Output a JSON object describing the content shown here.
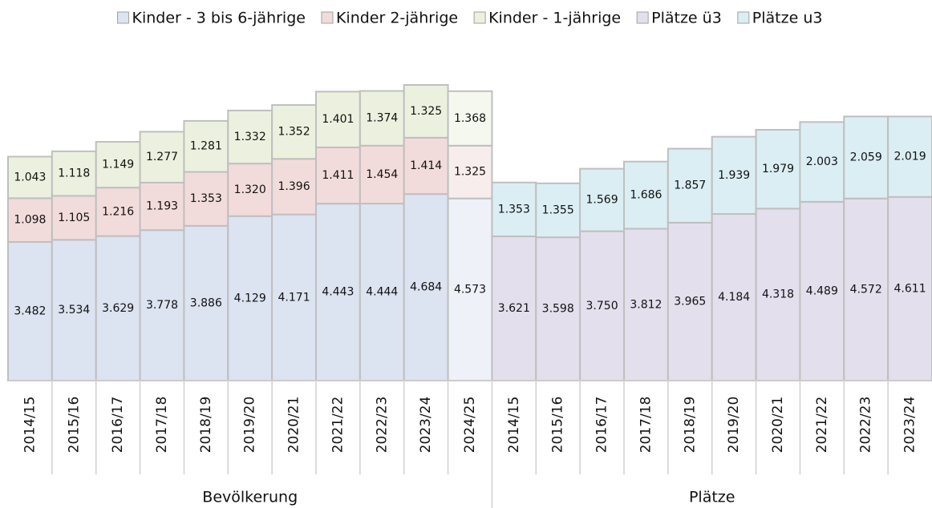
{
  "chart_data": {
    "type": "stacked_bar",
    "categories": [
      "2014/15",
      "2015/16",
      "2016/17",
      "2017/18",
      "2018/19",
      "2019/20",
      "2020/21",
      "2021/22",
      "2022/23",
      "2023/24",
      "2024/25",
      "2014/15",
      "2015/16",
      "2016/17",
      "2017/18",
      "2018/19",
      "2019/20",
      "2020/21",
      "2021/22",
      "2022/23",
      "2023/24"
    ],
    "groups": [
      "Bevölkerung",
      "Plätze"
    ],
    "series": [
      {
        "name": "Kinder - 3 bis 6-jährige",
        "color": "#dce3f1",
        "colors": [
          "#dce3f1",
          "#dce3f1",
          "#dce3f1",
          "#dce3f1",
          "#dce3f1",
          "#dce3f1",
          "#dce3f1",
          "#dce3f1",
          "#dce3f1",
          "#dce3f1",
          "#eef1f8",
          null,
          null,
          null,
          null,
          null,
          null,
          null,
          null,
          null,
          null
        ],
        "values": [
          3482,
          3534,
          3629,
          3778,
          3886,
          4129,
          4171,
          4443,
          4444,
          4684,
          4573,
          null,
          null,
          null,
          null,
          null,
          null,
          null,
          null,
          null,
          null
        ],
        "value_labels": [
          "3.482",
          "3.534",
          "3.629",
          "3.778",
          "3.886",
          "4.129",
          "4.171",
          "4.443",
          "4.444",
          "4.684",
          "4.573",
          null,
          null,
          null,
          null,
          null,
          null,
          null,
          null,
          null,
          null
        ]
      },
      {
        "name": "Kinder 2-jährige",
        "color": "#f2dcdb",
        "colors": [
          "#f2dcdb",
          "#f2dcdb",
          "#f2dcdb",
          "#f2dcdb",
          "#f2dcdb",
          "#f2dcdb",
          "#f2dcdb",
          "#f2dcdb",
          "#f2dcdb",
          "#f2dcdb",
          "#f8eded",
          null,
          null,
          null,
          null,
          null,
          null,
          null,
          null,
          null,
          null
        ],
        "values": [
          1098,
          1105,
          1216,
          1193,
          1353,
          1320,
          1396,
          1411,
          1454,
          1414,
          1325,
          null,
          null,
          null,
          null,
          null,
          null,
          null,
          null,
          null,
          null
        ],
        "value_labels": [
          "1.098",
          "1.105",
          "1.216",
          "1.193",
          "1.353",
          "1.320",
          "1.396",
          "1.411",
          "1.454",
          "1.414",
          "1.325",
          null,
          null,
          null,
          null,
          null,
          null,
          null,
          null,
          null,
          null
        ]
      },
      {
        "name": "Kinder - 1-jährige",
        "color": "#ebf1de",
        "colors": [
          "#ebf1de",
          "#ebf1de",
          "#ebf1de",
          "#ebf1de",
          "#ebf1de",
          "#ebf1de",
          "#ebf1de",
          "#ebf1de",
          "#ebf1de",
          "#ebf1de",
          "#f5f8ef",
          null,
          null,
          null,
          null,
          null,
          null,
          null,
          null,
          null,
          null
        ],
        "values": [
          1043,
          1118,
          1149,
          1277,
          1281,
          1332,
          1352,
          1401,
          1374,
          1325,
          1368,
          null,
          null,
          null,
          null,
          null,
          null,
          null,
          null,
          null,
          null
        ],
        "value_labels": [
          "1.043",
          "1.118",
          "1.149",
          "1.277",
          "1.281",
          "1.332",
          "1.352",
          "1.401",
          "1.374",
          "1.325",
          "1.368",
          null,
          null,
          null,
          null,
          null,
          null,
          null,
          null,
          null,
          null
        ]
      },
      {
        "name": "Plätze ü3",
        "color": "#e4dfec",
        "values": [
          null,
          null,
          null,
          null,
          null,
          null,
          null,
          null,
          null,
          null,
          null,
          3621,
          3598,
          3750,
          3812,
          3965,
          4184,
          4318,
          4489,
          4572,
          4611
        ],
        "value_labels": [
          null,
          null,
          null,
          null,
          null,
          null,
          null,
          null,
          null,
          null,
          null,
          "3.621",
          "3.598",
          "3.750",
          "3.812",
          "3.965",
          "4.184",
          "4.318",
          "4.489",
          "4.572",
          "4.611"
        ]
      },
      {
        "name": "Plätze u3",
        "color": "#dbeef4",
        "values": [
          null,
          null,
          null,
          null,
          null,
          null,
          null,
          null,
          null,
          null,
          null,
          1353,
          1355,
          1569,
          1686,
          1857,
          1939,
          1979,
          2003,
          2059,
          2019
        ],
        "value_labels": [
          null,
          null,
          null,
          null,
          null,
          null,
          null,
          null,
          null,
          null,
          null,
          "1.353",
          "1.355",
          "1.569",
          "1.686",
          "1.857",
          "1.939",
          "1.979",
          "2.003",
          "2.059",
          "2.019"
        ]
      }
    ]
  }
}
